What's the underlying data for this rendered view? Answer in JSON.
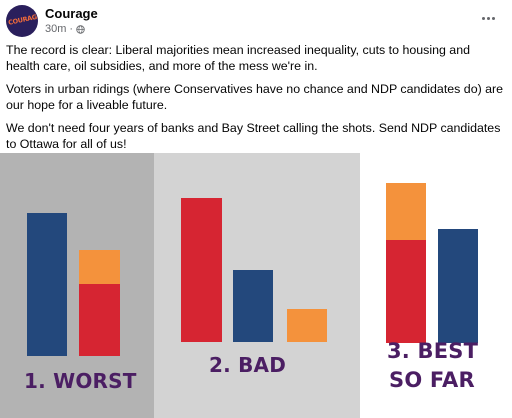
{
  "post": {
    "author": "Courage",
    "time": "30m",
    "separator": "·",
    "avatar_text": "COURAGE",
    "paragraphs": [
      "The record is clear: Liberal majorities mean increased inequality, cuts to housing and health care, oil subsidies, and more of the mess we're in.",
      "Voters in urban ridings (where Conservatives have no chance and NDP candidates do) are our hope for a liveable future.",
      "We don't need four years of banks and Bay Street calling the shots. Send NDP candidates to Ottawa for all of us!"
    ]
  },
  "icons": {
    "privacy": "globe-icon",
    "more": "more-options-icon"
  },
  "colors": {
    "blue": "#23487c",
    "red": "#d62532",
    "orange": "#f4923c",
    "caption": "#4b1e63"
  },
  "graphic": {
    "panels": [
      {
        "caption": "1. WORST",
        "bars": [
          {
            "color": "blue",
            "value": 1.0
          },
          {
            "color": "red+orange stacked",
            "red": 0.49,
            "orange": 0.24
          }
        ]
      },
      {
        "caption": "2. BAD",
        "bars": [
          {
            "color": "red",
            "value": 1.0
          },
          {
            "color": "blue",
            "value": 0.49
          },
          {
            "color": "orange",
            "value": 0.23
          }
        ]
      },
      {
        "caption_line1": "3. BEST",
        "caption_line2": "SO FAR",
        "bars": [
          {
            "color": "red+orange stacked",
            "red": 0.73,
            "orange": 0.41
          },
          {
            "color": "blue",
            "value": 0.79
          }
        ]
      }
    ]
  }
}
